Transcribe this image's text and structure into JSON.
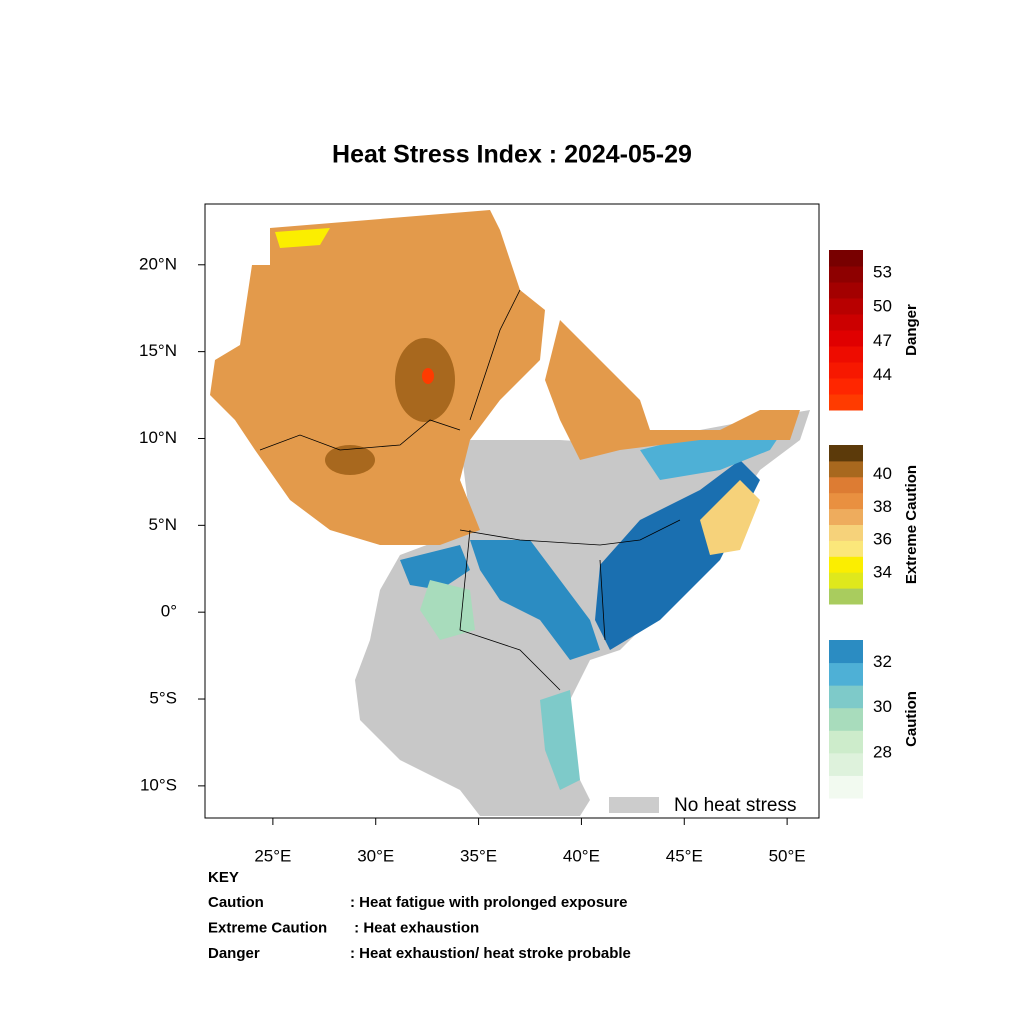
{
  "title": "Heat Stress Index : 2024-05-29",
  "map": {
    "xlim": [
      21.7,
      51.55
    ],
    "ylim": [
      -11.85,
      23.5
    ],
    "xticks": [
      {
        "value": 25,
        "label": "25°E"
      },
      {
        "value": 30,
        "label": "30°E"
      },
      {
        "value": 35,
        "label": "35°E"
      },
      {
        "value": 40,
        "label": "40°E"
      },
      {
        "value": 45,
        "label": "45°E"
      },
      {
        "value": 50,
        "label": "50°E"
      }
    ],
    "yticks": [
      {
        "value": 20,
        "label": "20°N"
      },
      {
        "value": 15,
        "label": "15°N"
      },
      {
        "value": 10,
        "label": "10°N"
      },
      {
        "value": 5,
        "label": "5°N"
      },
      {
        "value": 0,
        "label": "0°"
      },
      {
        "value": -5,
        "label": "5°S"
      },
      {
        "value": -10,
        "label": "10°S"
      }
    ]
  },
  "colorbars": [
    {
      "name": "Danger",
      "lim": [
        41,
        55
      ],
      "ticks": [
        53,
        50,
        47,
        44
      ],
      "colors": [
        "#ff3b00",
        "#ff2600",
        "#f71800",
        "#ee0c00",
        "#e00000",
        "#cc0000",
        "#b80000",
        "#a30000",
        "#8e0000",
        "#780000"
      ]
    },
    {
      "name": "Extreme Caution",
      "lim": [
        32.1,
        41.8
      ],
      "ticks": [
        40,
        38,
        36,
        34
      ],
      "colors": [
        "#a9cc5e",
        "#dfe81c",
        "#fbee00",
        "#fbe77a",
        "#f6d27a",
        "#eeac5d",
        "#e99040",
        "#dd7c33",
        "#a8681e",
        "#5c3a0a"
      ]
    },
    {
      "name": "Caution",
      "lim": [
        26,
        33
      ],
      "ticks": [
        32,
        30,
        28
      ],
      "colors": [
        "#f2faf0",
        "#def2dc",
        "#cdeccb",
        "#a8dcbc",
        "#7ecac9",
        "#4eb0d6",
        "#2b8cc2"
      ]
    }
  ],
  "legend": {
    "label": "No heat stress",
    "color": "#cccccc"
  },
  "key": {
    "title": "KEY",
    "rows": [
      [
        "Caution",
        ": Heat fatigue with prolonged exposure"
      ],
      [
        "Extreme Caution",
        " : Heat exhaustion"
      ],
      [
        "Danger",
        ": Heat exhaustion/ heat stroke probable"
      ]
    ]
  }
}
